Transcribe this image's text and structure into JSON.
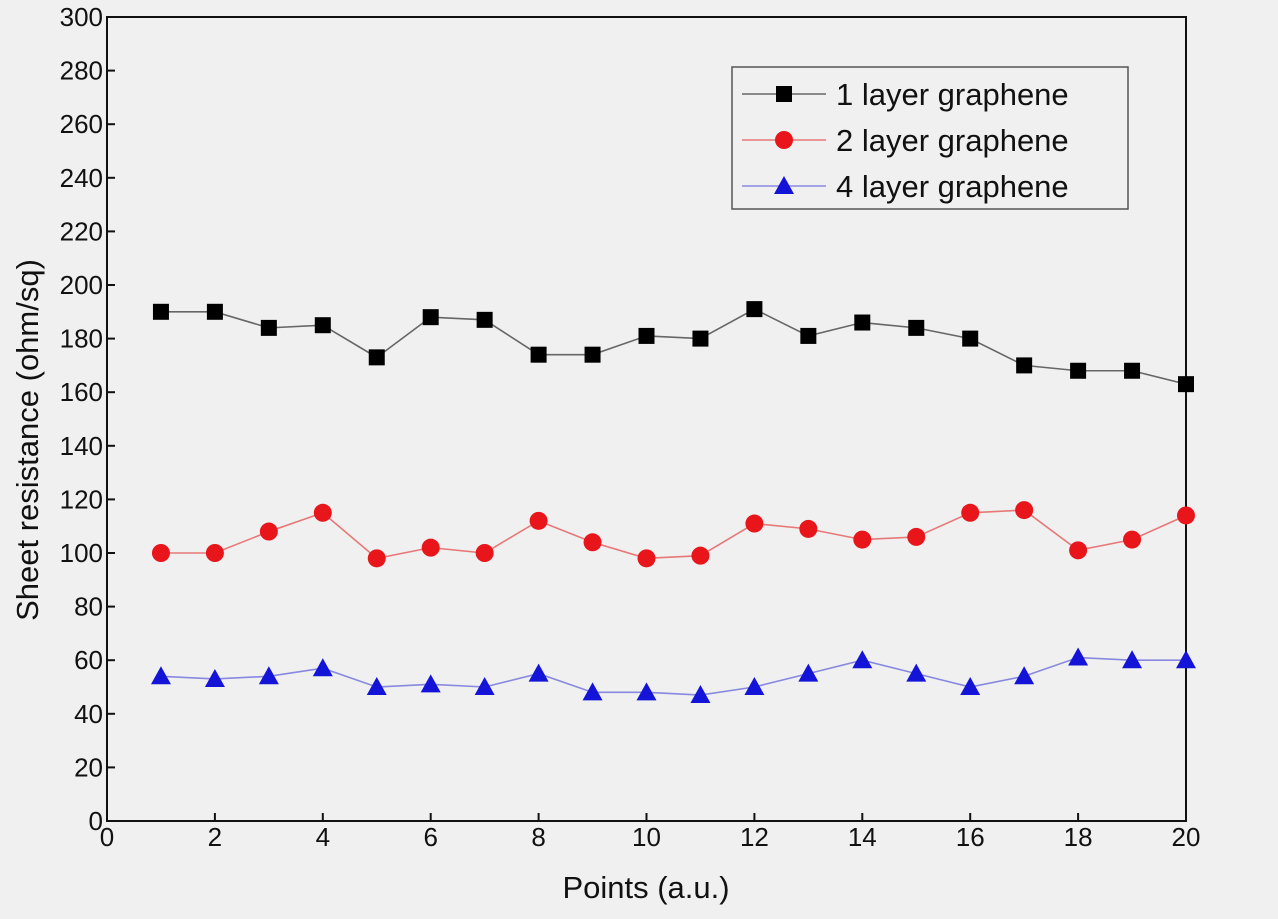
{
  "chart_data": {
    "type": "line",
    "xlabel": "Points (a.u.)",
    "ylabel": "Sheet resistance (ohm/sq)",
    "xlim": [
      0,
      20
    ],
    "ylim": [
      0,
      300
    ],
    "xticks": [
      "0",
      "2",
      "4",
      "6",
      "8",
      "10",
      "12",
      "14",
      "16",
      "18",
      "20"
    ],
    "yticks": [
      "0",
      "20",
      "40",
      "60",
      "80",
      "100",
      "120",
      "140",
      "160",
      "180",
      "200",
      "220",
      "240",
      "260",
      "280",
      "300"
    ],
    "grid": false,
    "legend_position": "top-right",
    "x": [
      1,
      2,
      3,
      4,
      5,
      6,
      7,
      8,
      9,
      10,
      11,
      12,
      13,
      14,
      15,
      16,
      17,
      18,
      19,
      20
    ],
    "series": [
      {
        "name": "1 layer graphene",
        "color": "#000000",
        "line_color": "#666666",
        "marker": "square",
        "values": [
          190,
          190,
          184,
          185,
          173,
          188,
          187,
          174,
          174,
          181,
          180,
          191,
          181,
          186,
          184,
          180,
          170,
          168,
          168,
          163
        ]
      },
      {
        "name": "2 layer graphene",
        "color": "#e8151b",
        "line_color": "#e87878",
        "marker": "circle",
        "values": [
          100,
          100,
          108,
          115,
          98,
          102,
          100,
          112,
          104,
          98,
          99,
          111,
          109,
          105,
          106,
          115,
          116,
          101,
          105,
          114
        ]
      },
      {
        "name": "4 layer graphene",
        "color": "#1414d8",
        "line_color": "#8888e0",
        "marker": "triangle",
        "values": [
          54,
          53,
          54,
          57,
          50,
          51,
          50,
          55,
          48,
          48,
          47,
          50,
          55,
          60,
          55,
          50,
          54,
          61,
          60,
          60
        ]
      }
    ]
  }
}
